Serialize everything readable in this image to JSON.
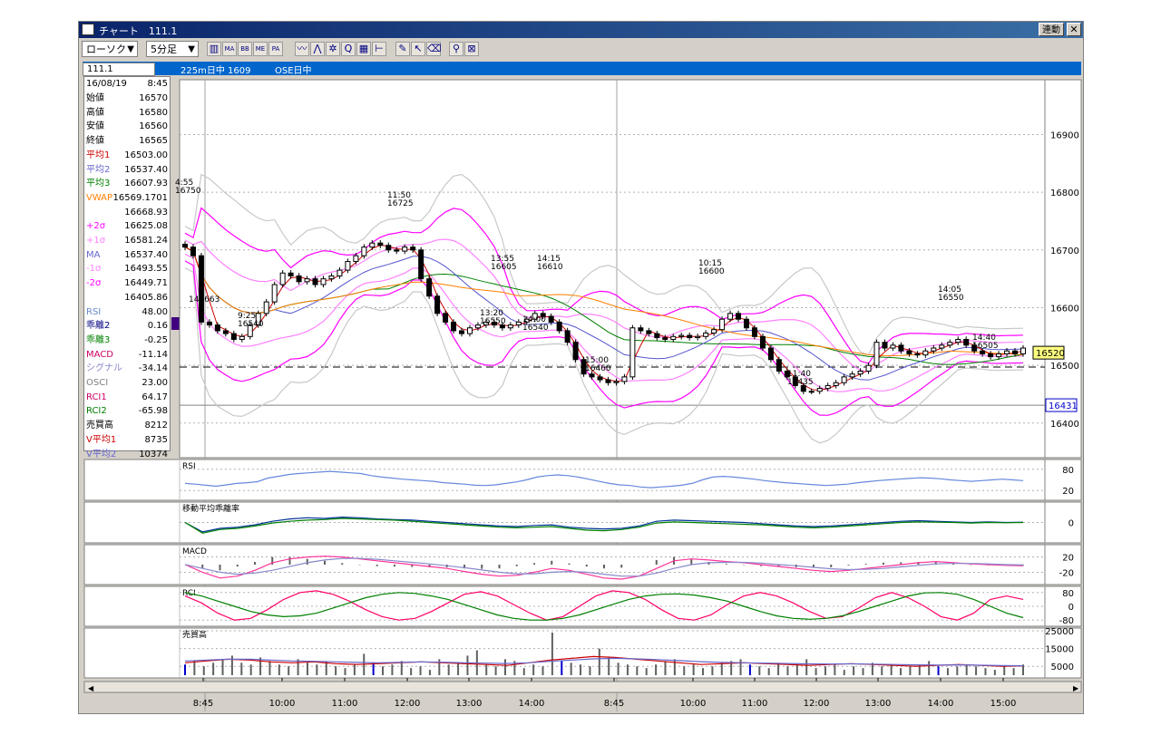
{
  "window": {
    "title": "チャート　111.1",
    "link_button": "連動",
    "close_label": "✕"
  },
  "toolbar": {
    "chart_type": "ローソク",
    "interval": "5分足",
    "tools": [
      {
        "icon": "candle-chart-icon",
        "glyph": "▥"
      },
      {
        "icon": "ma-icon",
        "glyph": "MA"
      },
      {
        "icon": "bollinger-icon",
        "glyph": "BB"
      },
      {
        "icon": "mode-icon",
        "glyph": "ME"
      },
      {
        "icon": "pa-icon",
        "glyph": "PA"
      },
      {
        "icon": "line-icon",
        "glyph": "〰"
      },
      {
        "icon": "trend-icon",
        "glyph": "⋀"
      },
      {
        "icon": "fib-icon",
        "glyph": "✲"
      },
      {
        "icon": "zoom-icon",
        "glyph": "Q"
      },
      {
        "icon": "grid-icon",
        "glyph": "▦"
      },
      {
        "icon": "bar-icon",
        "glyph": "⊢"
      },
      {
        "icon": "pencil-icon",
        "glyph": "✎"
      },
      {
        "icon": "pointer-icon",
        "glyph": "↖"
      },
      {
        "icon": "eraser-icon",
        "glyph": "⌫"
      },
      {
        "icon": "search-icon",
        "glyph": "⚲"
      },
      {
        "icon": "cross-icon",
        "glyph": "⊠"
      }
    ]
  },
  "infobar": {
    "symbol": "111.1",
    "name": "225m日中 1609",
    "market": "OSE日中"
  },
  "panel": {
    "date": "16/08/19",
    "time": "8:45",
    "rows": [
      {
        "label": "始値",
        "value": "16570",
        "color": "#000000"
      },
      {
        "label": "高値",
        "value": "16580",
        "color": "#000000"
      },
      {
        "label": "安値",
        "value": "16560",
        "color": "#000000"
      },
      {
        "label": "終値",
        "value": "16565",
        "color": "#000000"
      },
      {
        "label": "平均1",
        "value": "16503.00",
        "color": "#cc0000"
      },
      {
        "label": "平均2",
        "value": "16537.40",
        "color": "#6666cc"
      },
      {
        "label": "平均3",
        "value": "16607.93",
        "color": "#008000"
      },
      {
        "label": "VWAP",
        "value": "16569.1701",
        "color": "#ff8000"
      },
      {
        "label": "",
        "value": "16668.93",
        "color": "#c8c8c8"
      },
      {
        "label": "+2σ",
        "value": "16625.08",
        "color": "#ff00ff"
      },
      {
        "label": "+1σ",
        "value": "16581.24",
        "color": "#ff80ff"
      },
      {
        "label": "MA",
        "value": "16537.40",
        "color": "#6666cc"
      },
      {
        "label": "-1σ",
        "value": "16493.55",
        "color": "#ff80ff"
      },
      {
        "label": "-2σ",
        "value": "16449.71",
        "color": "#ff00ff"
      },
      {
        "label": "",
        "value": "16405.86",
        "color": "#c8c8c8"
      },
      {
        "label": "RSI",
        "value": "48.00",
        "color": "#6688cc"
      },
      {
        "label": "乖離2",
        "value": "0.16",
        "color": "#000080"
      },
      {
        "label": "乖離3",
        "value": "-0.25",
        "color": "#008000"
      },
      {
        "label": "MACD",
        "value": "-11.14",
        "color": "#cc0066"
      },
      {
        "label": "シグナル",
        "value": "-34.14",
        "color": "#8888cc"
      },
      {
        "label": "OSCI",
        "value": "23.00",
        "color": "#808080"
      },
      {
        "label": "RCI1",
        "value": "64.17",
        "color": "#cc0066"
      },
      {
        "label": "RCI2",
        "value": "-65.98",
        "color": "#008000"
      },
      {
        "label": "売買高",
        "value": "8212",
        "color": "#000000"
      },
      {
        "label": "V平均1",
        "value": "8735",
        "color": "#cc0000"
      },
      {
        "label": "V平均2",
        "value": "10374",
        "color": "#6666cc"
      }
    ]
  },
  "colors": {
    "bg": "#d4d0c8",
    "title_bg": "#0a246a",
    "info_bg": "#0066cc",
    "avg1": "#cc0000",
    "avg2": "#5555cc",
    "avg3": "#008000",
    "vwap": "#ff8000",
    "band2": "#ff00ff",
    "band1": "#ff80ff",
    "band3": "#c8c8c8"
  },
  "chart_data": [
    {
      "type": "candlestick",
      "title": "",
      "x_ticks": [
        "8:45",
        "10:00",
        "11:00",
        "12:00",
        "13:00",
        "14:00",
        "8:45",
        "10:00",
        "11:00",
        "12:00",
        "13:00",
        "14:00",
        "15:00"
      ],
      "y_ticks": [
        16400,
        16500,
        16600,
        16700,
        16800,
        16900
      ],
      "ylim": [
        16340,
        16995
      ],
      "close_series": [
        16705,
        16690,
        16575,
        16570,
        16560,
        16555,
        16545,
        16550,
        16570,
        16590,
        16610,
        16640,
        16660,
        16655,
        16645,
        16650,
        16640,
        16650,
        16655,
        16665,
        16680,
        16690,
        16705,
        16712,
        16708,
        16700,
        16698,
        16705,
        16700,
        16650,
        16620,
        16590,
        16575,
        16560,
        16555,
        16565,
        16570,
        16575,
        16570,
        16565,
        16570,
        16575,
        16580,
        16590,
        16585,
        16575,
        16560,
        16540,
        16510,
        16485,
        16480,
        16475,
        16470,
        16472,
        16480,
        16565,
        16560,
        16555,
        16548,
        16545,
        16550,
        16552,
        16548,
        16550,
        16556,
        16562,
        16580,
        16590,
        16580,
        16565,
        16550,
        16530,
        16510,
        16490,
        16480,
        16465,
        16455,
        16455,
        16460,
        16465,
        16470,
        16480,
        16485,
        16490,
        16500,
        16540,
        16530,
        16535,
        16525,
        16520,
        16518,
        16525,
        16530,
        16535,
        16540,
        16545,
        16535,
        16525,
        16520,
        16515,
        16520,
        16525,
        16520,
        16530
      ],
      "annotations": [
        {
          "time": "4:55",
          "price": "16750"
        },
        {
          "time": "11:50",
          "price": "16725"
        },
        {
          "time": "13:55",
          "price": "16605"
        },
        {
          "time": "14:15",
          "price": "16610"
        },
        {
          "time": "10:15",
          "price": "16600"
        },
        {
          "time": "14:05",
          "price": "16550"
        },
        {
          "time": "9:25",
          "price": "16540"
        },
        {
          "time": "13:20",
          "price": "16550"
        },
        {
          "time": "14:00",
          "price": "16540"
        },
        {
          "time": "15:00",
          "price": "16460"
        },
        {
          "time": "11:40",
          "price": "16435"
        },
        {
          "time": "14:40",
          "price": "16505"
        }
      ],
      "cursor_value": "145663",
      "price_tag": "16520",
      "price_tag2": "16431",
      "dashed_level": 16497,
      "solid_level": 16431
    },
    {
      "type": "line",
      "title": "RSI",
      "y_ticks": [
        80,
        20
      ],
      "ylim": [
        0,
        100
      ],
      "series": [
        {
          "values": [
            40,
            38,
            35,
            32,
            36,
            40,
            42,
            45,
            55,
            60,
            65,
            68,
            70,
            72,
            74,
            72,
            70,
            68,
            62,
            58,
            55,
            52,
            50,
            48,
            46,
            42,
            40,
            38,
            35,
            34,
            36,
            40,
            44,
            50,
            58,
            62,
            64,
            62,
            58,
            52,
            46,
            40,
            36,
            34,
            30,
            28,
            30,
            32,
            35,
            40,
            50,
            58,
            60,
            58,
            55,
            52,
            48,
            45,
            42,
            40,
            38,
            36,
            34,
            36,
            38,
            42,
            45,
            48,
            50,
            52,
            54,
            56,
            55,
            53,
            50,
            48,
            46,
            48,
            50,
            52,
            50,
            48
          ]
        }
      ]
    },
    {
      "type": "line",
      "title": "移動平均乖離率",
      "y_ticks": [
        0
      ],
      "ylim": [
        -1.5,
        1.5
      ],
      "series": [
        {
          "values": [
            0.0,
            -0.8,
            -0.5,
            -0.4,
            -0.2,
            0.1,
            0.3,
            0.4,
            0.35,
            0.45,
            0.4,
            0.3,
            0.25,
            0.2,
            0.1,
            0.0,
            -0.1,
            -0.2,
            -0.3,
            -0.35,
            -0.25,
            -0.2,
            -0.4,
            -0.5,
            -0.55,
            -0.5,
            -0.3,
            0.1,
            0.2,
            0.15,
            0.1,
            0.05,
            0.0,
            -0.1,
            -0.2,
            -0.3,
            -0.35,
            -0.3,
            -0.2,
            -0.1,
            0.0,
            0.1,
            0.15,
            0.1,
            0.05,
            0.0,
            0.05,
            0.0,
            0.02
          ]
        },
        {
          "values": [
            0.0,
            -0.9,
            -0.6,
            -0.5,
            -0.3,
            -0.05,
            0.1,
            0.2,
            0.25,
            0.35,
            0.3,
            0.25,
            0.2,
            0.1,
            0.0,
            -0.1,
            -0.2,
            -0.3,
            -0.4,
            -0.45,
            -0.4,
            -0.35,
            -0.5,
            -0.65,
            -0.7,
            -0.6,
            -0.4,
            -0.05,
            0.05,
            0.0,
            -0.05,
            -0.1,
            -0.15,
            -0.2,
            -0.3,
            -0.4,
            -0.45,
            -0.4,
            -0.3,
            -0.2,
            -0.1,
            0.0,
            0.05,
            0.02,
            0.0,
            -0.05,
            0.0,
            -0.02,
            0.0
          ]
        }
      ]
    },
    {
      "type": "line",
      "title": "MACD",
      "y_ticks": [
        20,
        -20
      ],
      "ylim": [
        -45,
        45
      ],
      "series": [
        {
          "values": [
            0,
            -20,
            -35,
            -30,
            -15,
            5,
            15,
            20,
            22,
            20,
            15,
            10,
            5,
            0,
            -5,
            -10,
            -18,
            -25,
            -30,
            -28,
            -20,
            -10,
            -15,
            -25,
            -35,
            -38,
            -30,
            -10,
            10,
            15,
            12,
            8,
            5,
            0,
            -5,
            -10,
            -15,
            -18,
            -15,
            -10,
            -5,
            0,
            5,
            8,
            5,
            2,
            0,
            -2,
            -3
          ]
        },
        {
          "values": [
            0,
            -10,
            -20,
            -25,
            -22,
            -15,
            -5,
            5,
            12,
            16,
            16,
            14,
            10,
            6,
            2,
            -3,
            -8,
            -14,
            -20,
            -24,
            -24,
            -20,
            -18,
            -20,
            -25,
            -30,
            -30,
            -22,
            -10,
            0,
            5,
            6,
            6,
            4,
            0,
            -3,
            -7,
            -11,
            -13,
            -12,
            -10,
            -6,
            -2,
            2,
            3,
            3,
            2,
            0,
            -1
          ]
        }
      ],
      "histogram": [
        0,
        -10,
        -15,
        -5,
        7,
        20,
        20,
        15,
        10,
        4,
        -1,
        -4,
        -5,
        -6,
        -7,
        -7,
        -10,
        -11,
        -10,
        -4,
        4,
        10,
        3,
        -5,
        -10,
        -8,
        0,
        12,
        20,
        15,
        7,
        2,
        -1,
        -4,
        -5,
        -7,
        -8,
        -7,
        -2,
        2,
        5,
        6,
        7,
        6,
        2,
        -1,
        -2,
        -2,
        -2
      ]
    },
    {
      "type": "line",
      "title": "RCI",
      "y_ticks": [
        80,
        0,
        -80
      ],
      "ylim": [
        -100,
        100
      ],
      "series": [
        {
          "values": [
            60,
            20,
            -40,
            -80,
            -70,
            -20,
            40,
            80,
            90,
            70,
            30,
            -20,
            -60,
            -80,
            -70,
            -30,
            20,
            70,
            85,
            60,
            10,
            -40,
            -80,
            -60,
            0,
            60,
            90,
            80,
            40,
            -20,
            -70,
            -80,
            -50,
            10,
            60,
            80,
            60,
            20,
            -30,
            -70,
            -60,
            -10,
            50,
            80,
            50,
            0,
            -60,
            -80,
            -40,
            40,
            60,
            40
          ]
        },
        {
          "values": [
            80,
            60,
            30,
            0,
            -30,
            -50,
            -60,
            -55,
            -40,
            -10,
            20,
            50,
            70,
            80,
            75,
            60,
            40,
            10,
            -20,
            -50,
            -70,
            -80,
            -80,
            -70,
            -50,
            -20,
            10,
            40,
            60,
            70,
            72,
            65,
            50,
            30,
            0,
            -30,
            -55,
            -70,
            -75,
            -70,
            -55,
            -30,
            0,
            30,
            60,
            78,
            80,
            70,
            40,
            0,
            -40,
            -66
          ]
        }
      ]
    },
    {
      "type": "bar",
      "title": "売買高",
      "y_ticks": [
        25000,
        15000,
        5000
      ],
      "ylim": [
        0,
        25000
      ],
      "values": [
        6000,
        8000,
        5000,
        7000,
        9000,
        11000,
        7000,
        6000,
        10000,
        8000,
        6000,
        5000,
        9000,
        7000,
        6000,
        8000,
        5000,
        4000,
        6000,
        12000,
        7000,
        5000,
        6000,
        8000,
        4000,
        5000,
        3000,
        9000,
        6000,
        7000,
        11000,
        14000,
        6000,
        5000,
        9000,
        8000,
        4000,
        6000,
        5000,
        24000,
        8000,
        7000,
        6000,
        5000,
        15000,
        10000,
        7000,
        6000,
        5000,
        4000,
        6000,
        8000,
        9000,
        5000,
        6000,
        4000,
        5000,
        7000,
        8000,
        9000,
        6000,
        5000,
        4000,
        7000,
        5000,
        6000,
        9000,
        4000,
        5000,
        6000,
        3000,
        5000,
        4000,
        7000,
        5000,
        6000,
        4000,
        5000,
        6000,
        8000,
        5000,
        4000,
        5000,
        6000,
        5000,
        4000,
        3000,
        5000,
        4000,
        6000
      ],
      "series": [
        {
          "name": "V平均1",
          "values": [
            7000,
            8000,
            9000,
            8500,
            7500,
            7000,
            7500,
            6500,
            6000,
            6500,
            7000,
            7500,
            7000,
            6500,
            6000,
            5500,
            7000,
            8500,
            9500,
            10500,
            10000,
            9000,
            8000,
            7000,
            6000,
            6500,
            7000,
            6500,
            6000,
            5500,
            6000,
            6500,
            6000,
            5500,
            5000,
            5500,
            6000,
            5500,
            5000,
            5200
          ]
        },
        {
          "name": "V平均2",
          "values": [
            8000,
            8500,
            9000,
            9000,
            8500,
            8000,
            7800,
            7500,
            7200,
            7000,
            7200,
            7500,
            7300,
            7000,
            6800,
            6600,
            7000,
            7800,
            8500,
            9200,
            9500,
            9200,
            8800,
            8200,
            7600,
            7200,
            7000,
            6800,
            6600,
            6400,
            6300,
            6400,
            6200,
            6000,
            5800,
            5700,
            5800,
            5600,
            5400,
            5300
          ]
        }
      ]
    }
  ]
}
